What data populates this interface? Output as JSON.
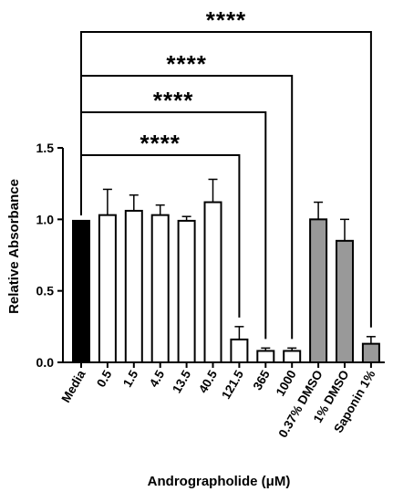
{
  "chart_data": {
    "type": "bar",
    "categories": [
      "Media",
      "0.5",
      "1.5",
      "4.5",
      "13.5",
      "40.5",
      "121.5",
      "365",
      "1000",
      "0.37% DMSO",
      "1% DMSO",
      "Saponin 1%"
    ],
    "values": [
      0.99,
      1.03,
      1.06,
      1.03,
      0.99,
      1.12,
      0.16,
      0.08,
      0.08,
      1.0,
      0.85,
      0.13
    ],
    "errors": [
      0.0,
      0.18,
      0.11,
      0.07,
      0.03,
      0.16,
      0.09,
      0.02,
      0.02,
      0.12,
      0.15,
      0.05
    ],
    "fill_colors": [
      "#000000",
      "#ffffff",
      "#ffffff",
      "#ffffff",
      "#ffffff",
      "#ffffff",
      "#ffffff",
      "#ffffff",
      "#ffffff",
      "#999999",
      "#999999",
      "#999999"
    ],
    "ylabel": "Relative Absorbance",
    "xlabel": "Andrographolide (μM)",
    "ylim": [
      0,
      1.5
    ],
    "yticks": [
      "0.0",
      "0.5",
      "1.0",
      "1.5"
    ],
    "ytick_values": [
      0,
      0.5,
      1.0,
      1.5
    ],
    "grid": false,
    "significance": [
      {
        "from": "Media",
        "to": "121.5",
        "label": "****"
      },
      {
        "from": "Media",
        "to": "365",
        "label": "****"
      },
      {
        "from": "Media",
        "to": "1000",
        "label": "****"
      },
      {
        "from": "Media",
        "to": "Saponin 1%",
        "label": "****"
      }
    ]
  }
}
